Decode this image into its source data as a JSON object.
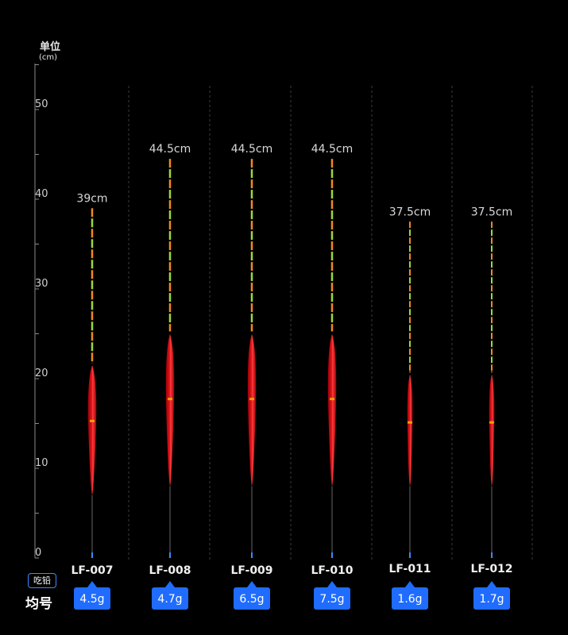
{
  "axis": {
    "unit_title": "单位",
    "unit_sub": "(cm)",
    "ticks": [
      0,
      10,
      20,
      30,
      40,
      50
    ],
    "ylim": [
      0,
      52
    ]
  },
  "labels": {
    "weight_badge": "吃铅",
    "avg_label": "均号"
  },
  "colors": {
    "body_red": "#e0131a",
    "tip_orange": "#f08a1c",
    "tip_green": "#9fd63a",
    "tag_blue": "#1f6cff",
    "guide_gray": "#3c3c3c",
    "axis_gray": "#8a8a8a"
  },
  "chart_data": {
    "type": "bar",
    "categories": [
      "LF-007",
      "LF-008",
      "LF-009",
      "LF-010",
      "LF-011",
      "LF-012"
    ],
    "ylabel": "单位 (cm)",
    "ylim": [
      0,
      52
    ],
    "total_length": [
      39,
      44.5,
      44.5,
      44.5,
      37.5,
      37.5
    ],
    "length_labels": [
      "39cm",
      "44.5cm",
      "44.5cm",
      "44.5cm",
      "37.5cm",
      "37.5cm"
    ],
    "weights": [
      "4.5g",
      "4.7g",
      "6.5g",
      "7.5g",
      "1.6g",
      "1.7g"
    ],
    "body_start": [
      7,
      8,
      8,
      8,
      8,
      8
    ],
    "body_end": [
      21.5,
      25,
      25,
      25,
      20.5,
      20.5
    ]
  }
}
